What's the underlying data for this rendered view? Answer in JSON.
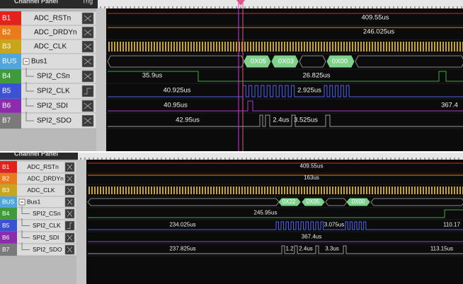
{
  "panels": [
    {
      "header": "Channel Panel",
      "trig": "Trig",
      "channels": [
        {
          "id": "B1",
          "name": "ADC_RSTn",
          "labels": [
            "409.55us"
          ]
        },
        {
          "id": "B2",
          "name": "ADC_DRDYn",
          "labels": [
            "246.025us"
          ]
        },
        {
          "id": "B3",
          "name": "ADC_CLK"
        },
        {
          "id": "BUS",
          "name": "Bus1",
          "labels": [
            "0X05",
            "0X03",
            "0X00"
          ]
        },
        {
          "id": "B4",
          "name": "SPI2_CSn",
          "labels": [
            "35.9us",
            "26.825us"
          ]
        },
        {
          "id": "B5",
          "name": "SPI2_CLK",
          "labels": [
            "40.925us",
            "2.925us"
          ]
        },
        {
          "id": "B6",
          "name": "SPI2_SDI",
          "labels": [
            "40.95us",
            "367.4"
          ]
        },
        {
          "id": "B7",
          "name": "SPI2_SDO",
          "labels": [
            "42.95us",
            "2.4us",
            "3.525us"
          ]
        }
      ]
    },
    {
      "header": "Channel Panel",
      "channels": [
        {
          "id": "B1",
          "name": "ADC_RSTn",
          "labels": [
            "409.55us"
          ]
        },
        {
          "id": "B2",
          "name": "ADC_DRDYn",
          "labels": [
            "163us"
          ]
        },
        {
          "id": "B3",
          "name": "ADC_CLK"
        },
        {
          "id": "BUS",
          "name": "Bus1",
          "labels": [
            "0X22",
            "0X05",
            "0X00"
          ]
        },
        {
          "id": "B4",
          "name": "SPI2_CSn",
          "labels": [
            "245.95us"
          ]
        },
        {
          "id": "B5",
          "name": "SPI2_CLK",
          "labels": [
            "234.025us",
            "3.075us",
            "110.17"
          ]
        },
        {
          "id": "B6",
          "name": "SPI2_SDI",
          "labels": [
            "367.4us"
          ]
        },
        {
          "id": "B7",
          "name": "SPI2_SDO",
          "labels": [
            "237.825us",
            "1.2",
            "2.4us",
            "3.3us",
            "113.15us"
          ]
        }
      ]
    }
  ]
}
